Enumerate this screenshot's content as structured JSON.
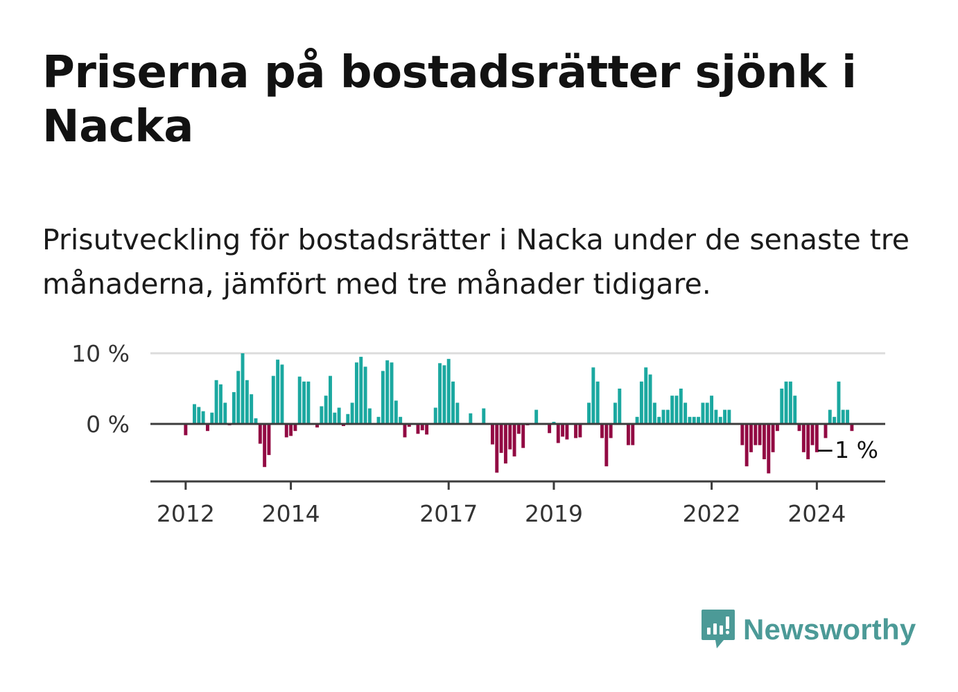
{
  "title": "Priserna på bostadsrätter sjönk i Nacka",
  "subtitle": "Prisutveckling för bostadsrätter i Nacka under de senaste tre månaderna, jämfört med tre månader tidigare.",
  "brand": {
    "name": "Newsworthy",
    "icon": "newsworthy-logo-icon",
    "color": "#4c9a97"
  },
  "chart_data": {
    "type": "bar",
    "title": "",
    "xlabel": "",
    "ylabel": "",
    "ylim": [
      -8,
      10
    ],
    "x_start": 2011.75,
    "x_step": 0.08333,
    "y_ticks": [
      {
        "value": 0,
        "label": "0 %"
      },
      {
        "value": 10,
        "label": "10 %"
      }
    ],
    "x_ticks": [
      {
        "value": 2012,
        "label": "2012"
      },
      {
        "value": 2014,
        "label": "2014"
      },
      {
        "value": 2017,
        "label": "2017"
      },
      {
        "value": 2019,
        "label": "2019"
      },
      {
        "value": 2022,
        "label": "2022"
      },
      {
        "value": 2024,
        "label": "2024"
      }
    ],
    "colors": {
      "positive": "#1ba8a0",
      "negative": "#920a43",
      "axis": "#3c3c3c",
      "grid": "#dcdcdc"
    },
    "last_value_label": "−1 %",
    "values": [
      0,
      0,
      0,
      -1.6,
      0,
      2.8,
      2.4,
      1.8,
      -1,
      1.6,
      6.2,
      5.6,
      3,
      -0.2,
      4.5,
      7.5,
      10,
      6.2,
      4.2,
      0.8,
      -2.8,
      -6.1,
      -4.4,
      6.8,
      9.1,
      8.4,
      -1.9,
      -1.7,
      -1.0,
      6.7,
      6,
      6,
      0,
      -0.5,
      2.5,
      4,
      6.8,
      1.6,
      2.3,
      -0.3,
      1.4,
      3,
      8.7,
      9.5,
      8.1,
      2.2,
      0,
      1,
      7.5,
      9,
      8.7,
      3.3,
      1,
      -1.9,
      -0.4,
      0,
      -1.4,
      -0.9,
      -1.5,
      0,
      2.3,
      8.6,
      8.3,
      9.2,
      6,
      3,
      0,
      0,
      1.5,
      0,
      0,
      2.2,
      0,
      -2.9,
      -6.9,
      -4.1,
      -5.6,
      -3.6,
      -4.6,
      -1.4,
      -3.4,
      -0.2,
      0,
      2,
      0,
      0,
      -1.3,
      0.3,
      -2.7,
      -1.8,
      -2.2,
      0,
      -2,
      -1.9,
      0,
      3,
      8,
      6,
      -2,
      -6,
      -2,
      3,
      5,
      0,
      -3,
      -3,
      1,
      6,
      8,
      7,
      3,
      1,
      2,
      2,
      4,
      4,
      5,
      3,
      1,
      1,
      1,
      3,
      3,
      4,
      2,
      1,
      2,
      2,
      0,
      0,
      -3,
      -6,
      -4,
      -3,
      -3,
      -5,
      -7,
      -4,
      -1,
      5,
      6,
      6,
      4,
      -1,
      -4,
      -5,
      -3,
      -4,
      0,
      -2,
      2,
      1,
      6,
      2,
      2,
      -1
    ]
  }
}
